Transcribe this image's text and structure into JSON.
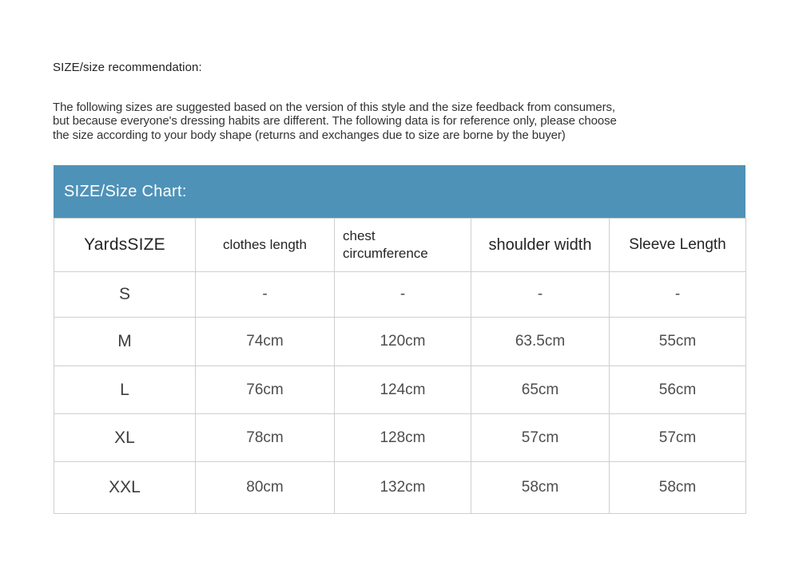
{
  "page": {
    "heading": "SIZE/size recommendation:",
    "paragraph_lines": [
      "The following sizes are suggested based on the version of this style and the size feedback from consumers,",
      "but because everyone's dressing habits are different. The following data is for reference only, please choose",
      "the size according to your body shape (returns and exchanges due to size are borne by the buyer)"
    ]
  },
  "size_chart": {
    "title": "SIZE/Size Chart:",
    "title_bar_color": "#4f92b8",
    "title_text_color": "#ffffff",
    "border_color": "#cfcfcf",
    "columns": [
      "YardsSIZE",
      "clothes length",
      "chest circumference",
      "shoulder width",
      "Sleeve Length"
    ],
    "rows": [
      {
        "size": "S",
        "clothes_length": "-",
        "chest_circumference": "-",
        "shoulder_width": "-",
        "sleeve_length": "-"
      },
      {
        "size": "M",
        "clothes_length": "74cm",
        "chest_circumference": "120cm",
        "shoulder_width": "63.5cm",
        "sleeve_length": "55cm"
      },
      {
        "size": "L",
        "clothes_length": "76cm",
        "chest_circumference": "124cm",
        "shoulder_width": "65cm",
        "sleeve_length": "56cm"
      },
      {
        "size": "XL",
        "clothes_length": "78cm",
        "chest_circumference": "128cm",
        "shoulder_width": "57cm",
        "sleeve_length": "57cm"
      },
      {
        "size": "XXL",
        "clothes_length": "80cm",
        "chest_circumference": "132cm",
        "shoulder_width": "58cm",
        "sleeve_length": "58cm"
      }
    ]
  }
}
